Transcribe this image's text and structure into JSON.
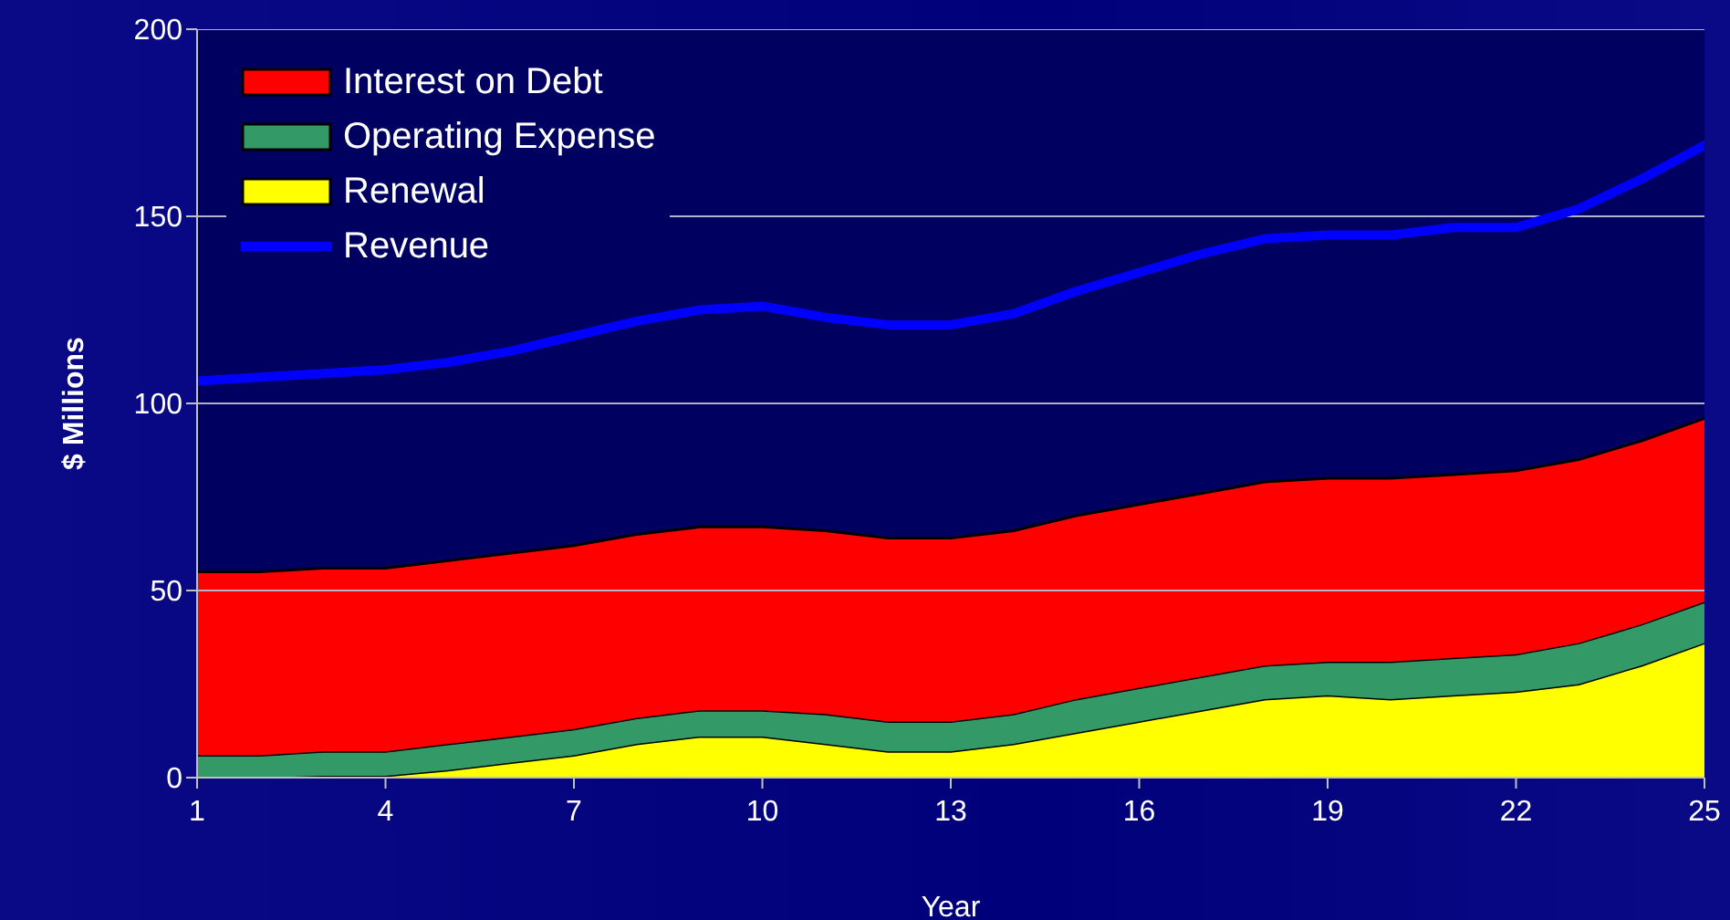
{
  "chart_data": {
    "type": "area",
    "stacked": true,
    "xlabel": "Year",
    "ylabel": "$ Millions",
    "x": [
      1,
      2,
      3,
      4,
      5,
      6,
      7,
      8,
      9,
      10,
      11,
      12,
      13,
      14,
      15,
      16,
      17,
      18,
      19,
      20,
      21,
      22,
      23,
      24,
      25
    ],
    "xlim": [
      1,
      25
    ],
    "xticks": [
      1,
      4,
      7,
      10,
      13,
      16,
      19,
      22,
      25
    ],
    "ylim": [
      0,
      200
    ],
    "yticks": [
      0,
      50,
      100,
      150,
      200
    ],
    "grid": "y",
    "legend": "top left",
    "series": [
      {
        "name": "Renewal",
        "color": "#ffff00",
        "values": [
          0,
          0,
          0.5,
          0.5,
          2,
          4,
          6,
          9,
          11,
          11,
          9,
          7,
          7,
          9,
          12,
          15,
          18,
          21,
          22,
          21,
          22,
          23,
          25,
          30,
          36
        ]
      },
      {
        "name": "Operating Expense",
        "color": "#339966",
        "values": [
          6,
          6,
          6.5,
          6.5,
          7,
          7,
          7,
          7,
          7,
          7,
          8,
          8,
          8,
          8,
          9,
          9,
          9,
          9,
          9,
          10,
          10,
          10,
          11,
          11,
          11
        ]
      },
      {
        "name": "Interest on Debt",
        "color": "#ff0000",
        "values": [
          49,
          49,
          49,
          49,
          49,
          49,
          49,
          49,
          49,
          49,
          49,
          49,
          49,
          49,
          49,
          49,
          49,
          49,
          49,
          49,
          49,
          49,
          49,
          49,
          49
        ]
      },
      {
        "name": "Revenue",
        "type": "line",
        "color": "#0000ff",
        "values": [
          106,
          107,
          108,
          109,
          111,
          114,
          118,
          122,
          125,
          126,
          123,
          121,
          121,
          124,
          130,
          135,
          140,
          144,
          145,
          145,
          147,
          147,
          152,
          160,
          169
        ]
      }
    ]
  }
}
